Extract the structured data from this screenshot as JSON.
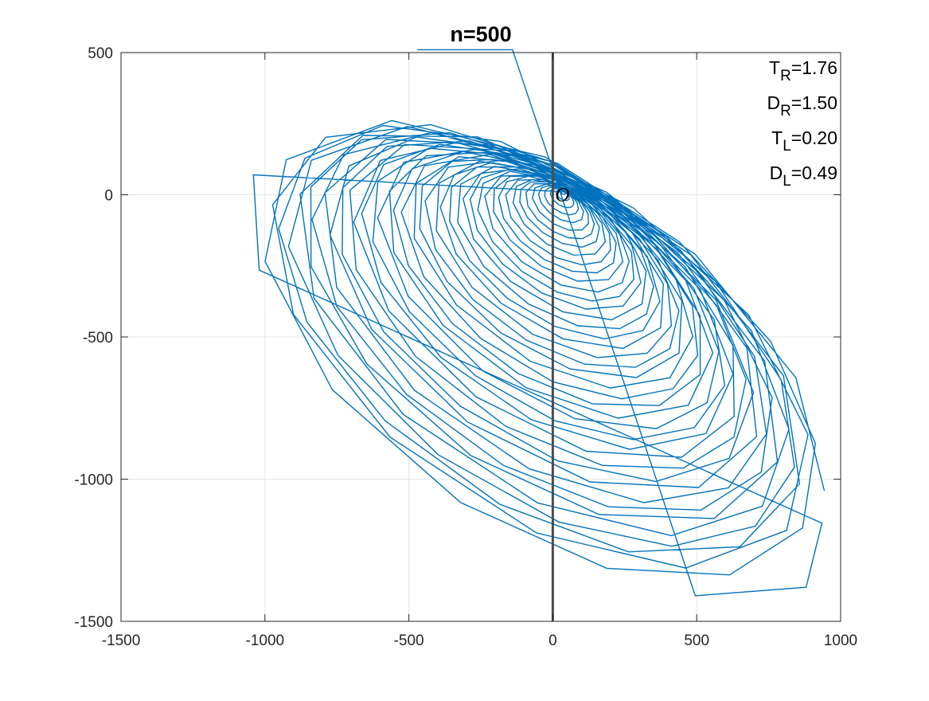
{
  "chart_data": {
    "type": "line",
    "title": "n=500",
    "xlim": [
      -1500,
      1000
    ],
    "ylim": [
      -1500,
      500
    ],
    "xticks": [
      -1500,
      -1000,
      -500,
      0,
      500,
      1000
    ],
    "yticks": [
      -1500,
      -1000,
      -500,
      0,
      500
    ],
    "xtick_labels": [
      "-1500",
      "-1000",
      "-500",
      "0",
      "500",
      "1000"
    ],
    "ytick_labels": [
      "-1500",
      "-1000",
      "-500",
      "0",
      "500"
    ],
    "grid": true,
    "vertical_line_x": 0,
    "origin_label": "O",
    "series_color": "#0072BD",
    "line_color_vertical": "#4d4d4d",
    "params": [
      {
        "base": "T",
        "sub": "R",
        "rest": "=1.76"
      },
      {
        "base": "D",
        "sub": "R",
        "rest": "=1.50"
      },
      {
        "base": "T",
        "sub": "L",
        "rest": "=0.20"
      },
      {
        "base": "D",
        "sub": "L",
        "rest": "=0.49"
      }
    ],
    "spiral": {
      "n_points": 500,
      "description_points": [
        {
          "x": -1040,
          "y": 70
        },
        {
          "x": -1020,
          "y": -265
        },
        {
          "x": 935,
          "y": -1155
        },
        {
          "x": 880,
          "y": -1380
        },
        {
          "x": 495,
          "y": -1410
        },
        {
          "x": -140,
          "y": 510
        },
        {
          "x": -470,
          "y": 510
        }
      ]
    }
  }
}
